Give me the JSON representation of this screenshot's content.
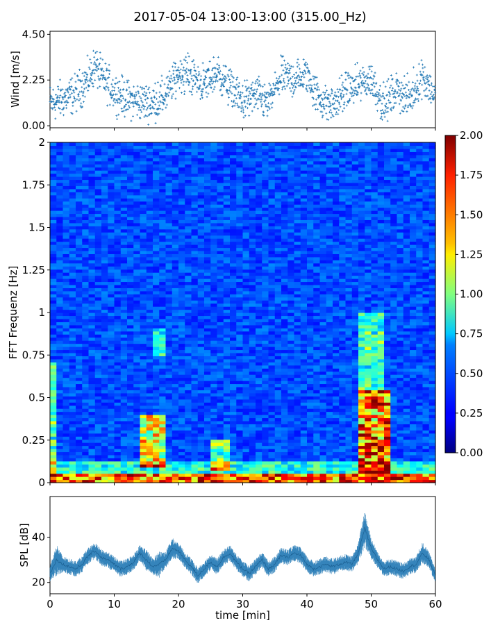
{
  "title": "2017-05-04 13:00-13:00 (315.00_Hz)",
  "colors": {
    "scatter": "#1f77b4",
    "spl": "#1f77b4",
    "colormap": "jet"
  },
  "chart_data": [
    {
      "id": "wind",
      "type": "scatter",
      "ylabel": "Wind [m/s]",
      "xlabel": "",
      "xlim": [
        0,
        60
      ],
      "ylim": [
        -0.1,
        4.65
      ],
      "yticks": [
        0.0,
        2.25,
        4.5
      ],
      "ytick_labels": [
        "0.00",
        "2.25",
        "4.50"
      ],
      "xticks": [
        0,
        10,
        20,
        30,
        40,
        50,
        60
      ],
      "series": [
        {
          "marker": "+",
          "envelope_x": [
            0,
            2,
            4,
            6,
            7,
            8,
            10,
            12,
            14,
            16,
            18,
            20,
            22,
            24,
            26,
            28,
            30,
            32,
            34,
            36,
            38,
            40,
            42,
            44,
            46,
            48,
            50,
            52,
            54,
            56,
            58,
            60
          ],
          "envelope_y": [
            1.1,
            1.3,
            1.6,
            2.3,
            3.0,
            2.4,
            1.7,
            1.3,
            1.2,
            1.1,
            1.5,
            2.6,
            2.5,
            2.0,
            2.6,
            1.9,
            1.2,
            1.5,
            1.1,
            2.4,
            2.3,
            2.5,
            1.3,
            1.0,
            1.7,
            2.0,
            2.3,
            1.0,
            1.8,
            1.3,
            2.5,
            1.4
          ]
        }
      ]
    },
    {
      "id": "spectrogram",
      "type": "heatmap",
      "ylabel": "FFT Frequenz [Hz]",
      "xlabel": "",
      "xlim": [
        0,
        60
      ],
      "ylim": [
        0,
        2
      ],
      "yticks": [
        0,
        0.25,
        0.5,
        0.75,
        1,
        1.25,
        1.5,
        1.75,
        2
      ],
      "ytick_labels": [
        "0",
        "0.25",
        "0.5",
        "0.75",
        "1",
        "1.25",
        "1.5",
        "1.75",
        "2"
      ],
      "colorbar": {
        "range": [
          0.0,
          2.0
        ],
        "ticks": [
          "0.00",
          "0.25",
          "0.50",
          "0.75",
          "1.00",
          "1.25",
          "1.50",
          "1.75",
          "2.00"
        ]
      },
      "hotspots": [
        {
          "x": [
            14,
            17.5
          ],
          "y": [
            0.1,
            0.4
          ],
          "level": 0.7
        },
        {
          "x": [
            16,
            18
          ],
          "y": [
            0.75,
            0.9
          ],
          "level": 0.45
        },
        {
          "x": [
            25,
            28
          ],
          "y": [
            0.08,
            0.25
          ],
          "level": 0.55
        },
        {
          "x": [
            48.5,
            53
          ],
          "y": [
            0.05,
            0.55
          ],
          "level": 0.9
        },
        {
          "x": [
            48.5,
            52
          ],
          "y": [
            0.55,
            1.0
          ],
          "level": 0.5
        },
        {
          "x": [
            0,
            1
          ],
          "y": [
            0.0,
            0.7
          ],
          "level": 0.5
        }
      ]
    },
    {
      "id": "spl",
      "type": "area",
      "ylabel": "SPL [dB]",
      "xlabel": "time [min]",
      "xlim": [
        0,
        60
      ],
      "ylim": [
        15,
        58
      ],
      "yticks": [
        20,
        40
      ],
      "ytick_labels": [
        "20",
        "40"
      ],
      "xticks": [
        0,
        10,
        20,
        30,
        40,
        50,
        60
      ],
      "xtick_labels": [
        "0",
        "10",
        "20",
        "30",
        "40",
        "50",
        "60"
      ],
      "series": [
        {
          "x": [
            0,
            1,
            2,
            3,
            4,
            5,
            6,
            7,
            8,
            9,
            10,
            11,
            12,
            13,
            14,
            15,
            16,
            17,
            18,
            19,
            20,
            21,
            22,
            23,
            24,
            25,
            26,
            27,
            28,
            29,
            30,
            31,
            32,
            33,
            34,
            35,
            36,
            37,
            38,
            39,
            40,
            41,
            42,
            43,
            44,
            45,
            46,
            47,
            48,
            49,
            50,
            51,
            52,
            53,
            54,
            55,
            56,
            57,
            58,
            59,
            60
          ],
          "mean": [
            24,
            30,
            28,
            27,
            26,
            28,
            32,
            34,
            31,
            30,
            28,
            26,
            27,
            29,
            33,
            30,
            27,
            28,
            30,
            35,
            34,
            30,
            27,
            23,
            26,
            29,
            27,
            31,
            33,
            29,
            26,
            24,
            27,
            30,
            26,
            28,
            32,
            31,
            33,
            32,
            28,
            26,
            27,
            28,
            27,
            28,
            29,
            28,
            33,
            44,
            35,
            30,
            26,
            27,
            26,
            25,
            27,
            28,
            33,
            30,
            23
          ],
          "spread": [
            3,
            6,
            3,
            3,
            3,
            3,
            3,
            3,
            3,
            3,
            3,
            3,
            3,
            3,
            3,
            4,
            3,
            5,
            3,
            4,
            3,
            3,
            3,
            3,
            3,
            3,
            3,
            3,
            3,
            3,
            3,
            3,
            3,
            3,
            3,
            3,
            3,
            3,
            3,
            3,
            3,
            3,
            3,
            3,
            3,
            3,
            3,
            3,
            4,
            7,
            4,
            3,
            3,
            3,
            3,
            3,
            3,
            3,
            4,
            3,
            3
          ]
        }
      ]
    }
  ]
}
